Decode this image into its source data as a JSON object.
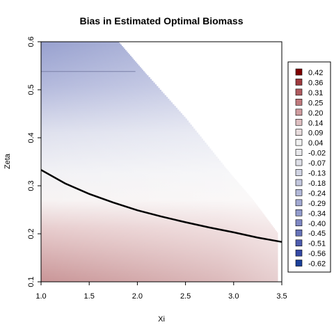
{
  "chart_data": {
    "type": "heatmap",
    "title": "Bias in Estimated Optimal Biomass",
    "xlabel": "Xi",
    "ylabel": "Zeta",
    "xlim": [
      1.0,
      3.5
    ],
    "ylim": [
      0.1,
      0.6
    ],
    "x_ticks": [
      "1.0",
      "1.5",
      "2.0",
      "2.5",
      "3.0",
      "3.5"
    ],
    "y_ticks": [
      "0.1",
      "0.2",
      "0.3",
      "0.4",
      "0.5",
      "0.6"
    ],
    "legend_placement": "right",
    "legend": {
      "labels": [
        "0.42",
        "0.36",
        "0.31",
        "0.25",
        "0.20",
        "0.14",
        "0.09",
        "0.04",
        "-0.02",
        "-0.07",
        "-0.13",
        "-0.18",
        "-0.24",
        "-0.29",
        "-0.34",
        "-0.40",
        "-0.45",
        "-0.51",
        "-0.56",
        "-0.62"
      ],
      "colors": [
        "#7f0000",
        "#9e3a3e",
        "#b05c60",
        "#c07a7e",
        "#d09da0",
        "#dfc0c2",
        "#e8dcdd",
        "#f1f1f1",
        "#e9e9ec",
        "#dfe0e8",
        "#d2d5e4",
        "#c4c8df",
        "#b3b9d9",
        "#a3aad3",
        "#939ccd",
        "#7f88c4",
        "#6773b9",
        "#4e5caf",
        "#3549a6",
        "#1a3f9a"
      ]
    },
    "feasible_boundary": {
      "x": [
        1.0,
        1.8,
        2.1,
        2.5,
        2.9,
        3.2,
        3.46
      ],
      "y": [
        0.6,
        0.6,
        0.53,
        0.44,
        0.34,
        0.27,
        0.2
      ]
    },
    "contour_line": {
      "x": [
        1.0,
        1.25,
        1.5,
        1.75,
        2.0,
        2.25,
        2.5,
        2.75,
        3.0,
        3.25,
        3.5
      ],
      "y": [
        0.333,
        0.305,
        0.283,
        0.265,
        0.249,
        0.236,
        0.224,
        0.213,
        0.203,
        0.192,
        0.183
      ]
    },
    "reference_line": {
      "x": [
        1.0,
        1.98
      ],
      "y": [
        0.538,
        0.538
      ]
    }
  }
}
